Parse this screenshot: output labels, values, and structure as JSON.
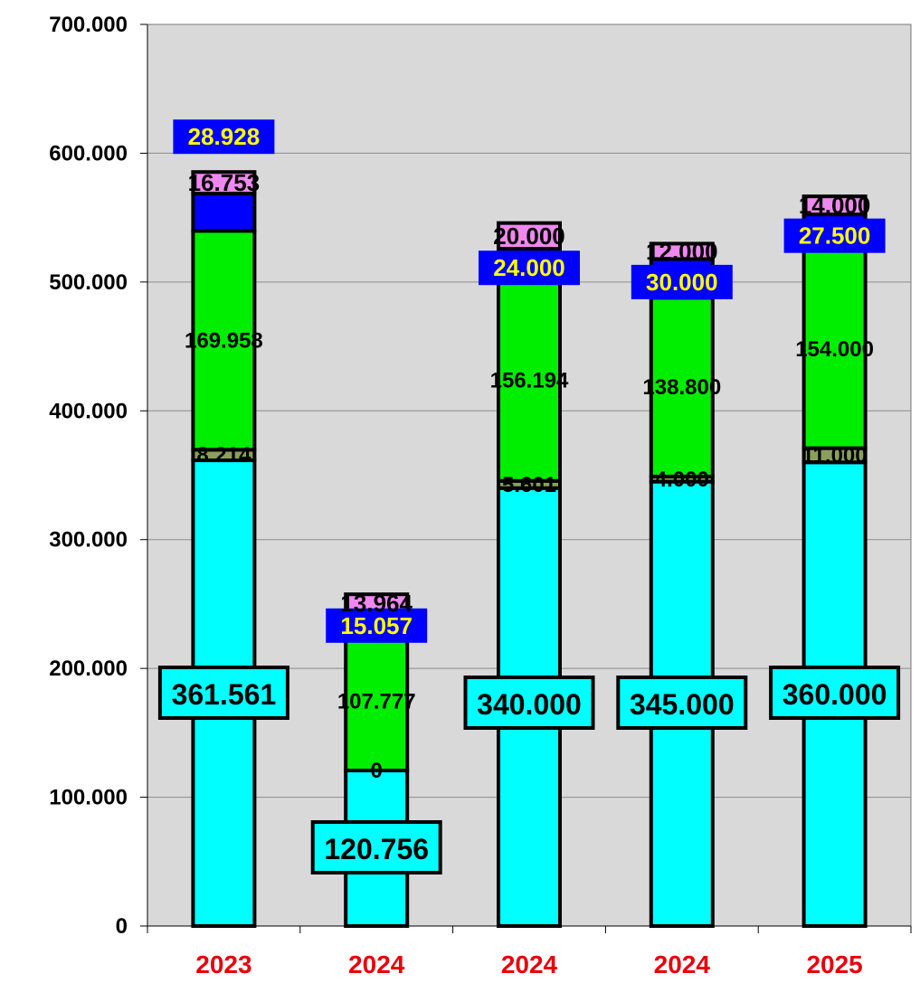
{
  "chart_data": {
    "type": "bar",
    "stacked": true,
    "categories": [
      "2023",
      "2024",
      "2024",
      "2024",
      "2025"
    ],
    "ylim": [
      0,
      700000
    ],
    "y_ticks": [
      "0",
      "100.000",
      "200.000",
      "300.000",
      "400.000",
      "500.000",
      "600.000",
      "700.000"
    ],
    "grid": true,
    "series": [
      {
        "values": [
          361561,
          120756,
          340000,
          345000,
          360000
        ],
        "labels": [
          "361.561",
          "120.756",
          "340.000",
          "345.000",
          "360.000"
        ],
        "color": "#00ffff"
      },
      {
        "values": [
          8214,
          0,
          5601,
          4000,
          11000
        ],
        "labels": [
          "8.214",
          "0",
          "5.601",
          "4.000",
          "11.000"
        ],
        "color": "#8aa05a"
      },
      {
        "values": [
          169958,
          107777,
          156194,
          138800,
          154000
        ],
        "labels": [
          "169.958",
          "107.777",
          "156.194",
          "138.800",
          "154.000"
        ],
        "color": "#00ee00"
      },
      {
        "values": [
          28928,
          15057,
          24000,
          30000,
          27500
        ],
        "labels": [
          "28.928",
          "15.057",
          "24.000",
          "30.000",
          "27.500"
        ],
        "color": "#0000ff"
      },
      {
        "values": [
          16753,
          13964,
          20000,
          12000,
          14000
        ],
        "labels": [
          "16.753",
          "13.964",
          "20.000",
          "12.000",
          "14.000"
        ],
        "color": "#ee88ee"
      }
    ],
    "colors": {
      "plot_background": "#d9d9d9",
      "gridline": "#8c8c8c",
      "category_label": "#e8000b",
      "blue_label_text": "#ffff00"
    }
  }
}
